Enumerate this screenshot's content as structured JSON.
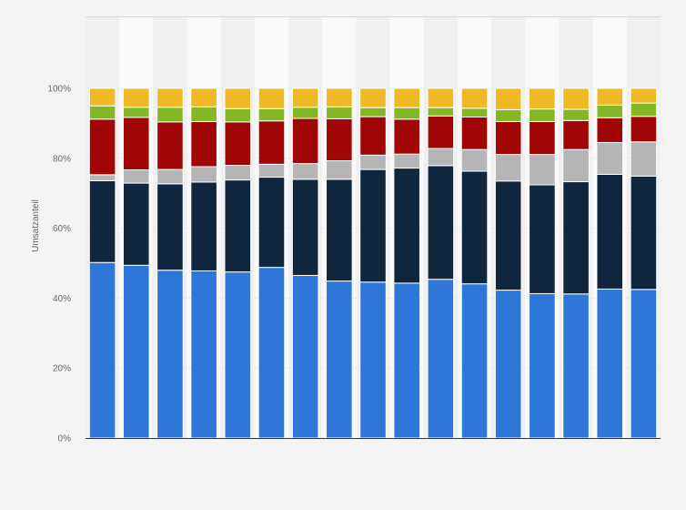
{
  "chart_data": {
    "type": "bar",
    "stacked": true,
    "normalized": true,
    "ylabel": "Umsatzanteil",
    "ylim": [
      0,
      100
    ],
    "yticks": [
      "0%",
      "20%",
      "40%",
      "60%",
      "80%",
      "100%"
    ],
    "ytick_values": [
      0,
      20,
      40,
      60,
      80,
      100
    ],
    "grid": true,
    "legend": "none",
    "series": [
      {
        "color": "#2f76d9",
        "values": [
          50.2,
          49.4,
          48.0,
          47.8,
          47.5,
          48.8,
          46.5,
          44.9,
          44.6,
          44.3,
          45.4,
          44.1,
          42.3,
          41.3,
          41.2,
          42.6,
          42.5
        ]
      },
      {
        "color": "#0f263e",
        "values": [
          23.4,
          23.5,
          24.7,
          25.4,
          26.3,
          25.8,
          27.5,
          29.1,
          32.2,
          32.9,
          32.5,
          32.2,
          31.2,
          31.1,
          32.1,
          32.8,
          32.4
        ]
      },
      {
        "color": "#b5b5b5",
        "values": [
          1.7,
          3.8,
          4.1,
          4.4,
          4.2,
          3.7,
          4.5,
          5.3,
          4.1,
          4.0,
          4.9,
          6.2,
          7.6,
          8.7,
          9.2,
          9.1,
          9.8
        ]
      },
      {
        "color": "#a00606",
        "values": [
          15.9,
          15.0,
          13.6,
          12.9,
          12.4,
          12.4,
          12.9,
          12.0,
          11.0,
          10.0,
          9.3,
          9.3,
          9.4,
          9.4,
          8.3,
          7.1,
          7.3
        ]
      },
      {
        "color": "#83b725",
        "values": [
          3.8,
          2.9,
          4.2,
          4.2,
          3.8,
          3.5,
          3.2,
          3.4,
          2.6,
          3.3,
          2.4,
          2.5,
          3.4,
          3.6,
          3.2,
          3.6,
          3.8
        ]
      },
      {
        "color": "#efb925",
        "values": [
          5.0,
          5.4,
          5.4,
          5.3,
          5.8,
          5.8,
          5.4,
          5.3,
          5.5,
          5.5,
          5.5,
          5.7,
          6.1,
          5.9,
          6.0,
          4.8,
          4.2
        ]
      }
    ]
  }
}
